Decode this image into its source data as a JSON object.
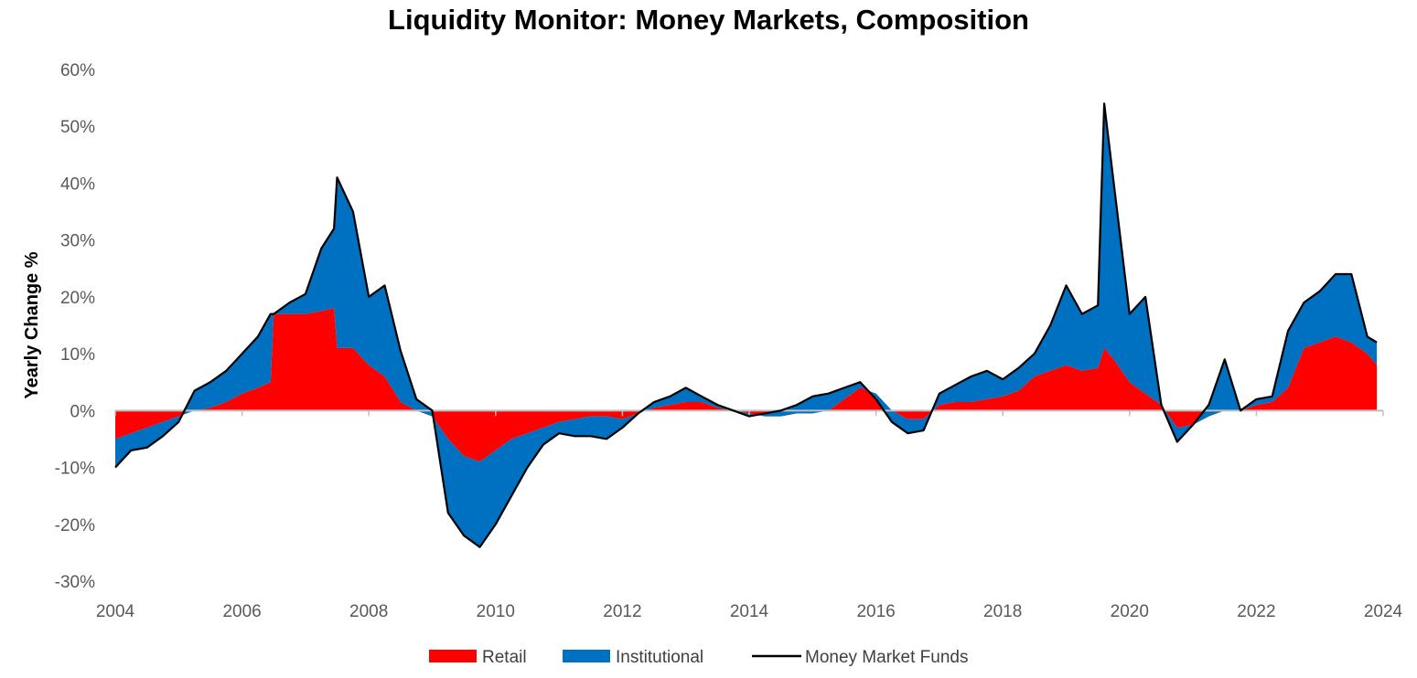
{
  "chart_data": {
    "type": "area",
    "title": "Liquidity Monitor: Money Markets, Composition",
    "xlabel": "",
    "ylabel": "Yearly Change %",
    "xlim": [
      2004,
      2024
    ],
    "ylim": [
      -30,
      60
    ],
    "x_ticks": [
      "2004",
      "2006",
      "2008",
      "2010",
      "2012",
      "2014",
      "2016",
      "2018",
      "2020",
      "2022",
      "2024"
    ],
    "y_ticks": [
      "60%",
      "50%",
      "40%",
      "30%",
      "20%",
      "10%",
      "0%",
      "-10%",
      "-20%",
      "-30%"
    ],
    "legend_position": "bottom",
    "grid": false,
    "colors": {
      "retail": "#ff0000",
      "institutional": "#0070c0",
      "total": "#000000"
    },
    "x": [
      2004.0,
      2004.25,
      2004.5,
      2004.75,
      2005.0,
      2005.25,
      2005.5,
      2005.75,
      2006.0,
      2006.25,
      2006.45,
      2006.5,
      2006.75,
      2007.0,
      2007.25,
      2007.45,
      2007.5,
      2007.75,
      2008.0,
      2008.25,
      2008.5,
      2008.75,
      2009.0,
      2009.25,
      2009.5,
      2009.75,
      2010.0,
      2010.25,
      2010.5,
      2010.75,
      2011.0,
      2011.25,
      2011.5,
      2011.75,
      2012.0,
      2012.25,
      2012.5,
      2012.75,
      2013.0,
      2013.25,
      2013.5,
      2013.75,
      2014.0,
      2014.25,
      2014.5,
      2014.75,
      2015.0,
      2015.25,
      2015.5,
      2015.75,
      2016.0,
      2016.25,
      2016.5,
      2016.75,
      2017.0,
      2017.25,
      2017.5,
      2017.75,
      2018.0,
      2018.25,
      2018.5,
      2018.75,
      2019.0,
      2019.25,
      2019.5,
      2019.6,
      2019.75,
      2020.0,
      2020.25,
      2020.5,
      2020.75,
      2021.0,
      2021.25,
      2021.5,
      2021.75,
      2022.0,
      2022.25,
      2022.5,
      2022.75,
      2023.0,
      2023.25,
      2023.5,
      2023.75,
      2023.9
    ],
    "series": [
      {
        "name": "Retail",
        "values": [
          -5,
          -4,
          -3,
          -2,
          -1,
          0,
          0.5,
          1.5,
          3,
          4,
          5,
          17,
          17,
          17,
          17.5,
          18,
          11,
          11,
          8,
          6,
          1.5,
          0,
          -1,
          -5,
          -8,
          -9,
          -7,
          -5,
          -4,
          -3,
          -2,
          -1.5,
          -1,
          -1,
          -1.5,
          -0.5,
          0.5,
          1,
          1.5,
          1.5,
          0.5,
          0,
          -0.5,
          -1,
          -1,
          -0.5,
          -0.5,
          0,
          2,
          4,
          3,
          0,
          -1.5,
          -1.5,
          1,
          1.5,
          1.5,
          2,
          2.5,
          3.5,
          6,
          7,
          8,
          7,
          7.5,
          11,
          9,
          5,
          3,
          1,
          -3,
          -2.5,
          -1,
          0,
          0,
          1,
          1.5,
          4,
          11,
          12,
          13,
          12,
          10,
          8
        ]
      },
      {
        "name": "Institutional",
        "values": [
          -5,
          -3,
          -3.5,
          -2.5,
          -1,
          3.5,
          4.5,
          5.5,
          7,
          9,
          12,
          0,
          2,
          3.5,
          11,
          14,
          30,
          24,
          12,
          16,
          9,
          2,
          1,
          -13,
          -14,
          -15,
          -13,
          -10,
          -6,
          -3,
          -2,
          -3,
          -3.5,
          -4,
          -1.5,
          0,
          1,
          1.5,
          2.5,
          1,
          0.5,
          0,
          -0.5,
          0.5,
          1,
          1.5,
          3,
          3,
          2,
          1,
          -1,
          -2,
          -2.5,
          -2,
          2,
          3,
          4.5,
          5,
          3,
          4,
          4,
          8,
          14,
          10,
          11,
          43,
          31,
          12,
          17,
          0,
          -2.5,
          0,
          2,
          9,
          0,
          1,
          1,
          10,
          8,
          9,
          11,
          12,
          3,
          4
        ]
      },
      {
        "name": "Money Market Funds",
        "values": [
          -10,
          -7,
          -6.5,
          -4.5,
          -2,
          3.5,
          5,
          7,
          10,
          13,
          17,
          17,
          19,
          20.5,
          28.5,
          32,
          41,
          35,
          20,
          22,
          10.5,
          2,
          0,
          -18,
          -22,
          -24,
          -20,
          -15,
          -10,
          -6,
          -4,
          -4.5,
          -4.5,
          -5,
          -3,
          -0.5,
          1.5,
          2.5,
          4,
          2.5,
          1,
          0,
          -1,
          -0.5,
          0,
          1,
          2.5,
          3,
          4,
          5,
          2,
          -2,
          -4,
          -3.5,
          3,
          4.5,
          6,
          7,
          5.5,
          7.5,
          10,
          15,
          22,
          17,
          18.5,
          54,
          40,
          17,
          20,
          1,
          -5.5,
          -2.5,
          1,
          9,
          0,
          2,
          2.5,
          14,
          19,
          21,
          24,
          24,
          13,
          12
        ]
      }
    ]
  },
  "legend": {
    "items": [
      {
        "label": "Retail",
        "color": "#ff0000"
      },
      {
        "label": "Institutional",
        "color": "#0070c0"
      },
      {
        "label": "Money Market Funds",
        "color": "#000000"
      }
    ]
  }
}
